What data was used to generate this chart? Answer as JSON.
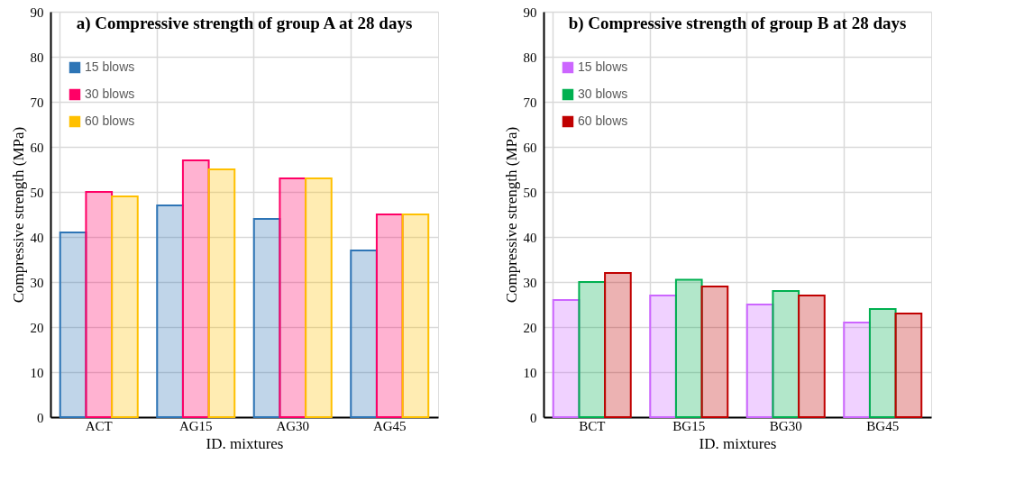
{
  "chart_data": [
    {
      "type": "bar",
      "title": "a) Compressive strength of group A at 28 days",
      "xlabel": "ID. mixtures",
      "ylabel": "Compressive strength (MPa)",
      "categories": [
        "ACT",
        "AG15",
        "AG30",
        "AG45"
      ],
      "series": [
        {
          "name": "15 blows",
          "color": "#2e75b6",
          "values": [
            41,
            47,
            44,
            37
          ]
        },
        {
          "name": "30 blows",
          "color": "#ff0066",
          "values": [
            50,
            57,
            53,
            45
          ]
        },
        {
          "name": "60 blows",
          "color": "#ffc000",
          "values": [
            49,
            55,
            53,
            45
          ]
        }
      ],
      "ylim": [
        0,
        90
      ],
      "yticks": [
        0,
        10,
        20,
        30,
        40,
        50,
        60,
        70,
        80,
        90
      ],
      "grid": true,
      "legend": "top left"
    },
    {
      "type": "bar",
      "title": "b) Compressive strength of group B at 28 days",
      "xlabel": "ID. mixtures",
      "ylabel": "Compressive strength (MPa)",
      "categories": [
        "BCT",
        "BG15",
        "BG30",
        "BG45"
      ],
      "series": [
        {
          "name": "15 blows",
          "color": "#cc66ff",
          "values": [
            26,
            27,
            25,
            21
          ]
        },
        {
          "name": "30 blows",
          "color": "#00b050",
          "values": [
            30,
            30.5,
            28,
            24
          ]
        },
        {
          "name": "60 blows",
          "color": "#c00000",
          "values": [
            32,
            29,
            27,
            23
          ]
        }
      ],
      "ylim": [
        0,
        90
      ],
      "yticks": [
        0,
        10,
        20,
        30,
        40,
        50,
        60,
        70,
        80,
        90
      ],
      "grid": true,
      "legend": "top left"
    }
  ]
}
